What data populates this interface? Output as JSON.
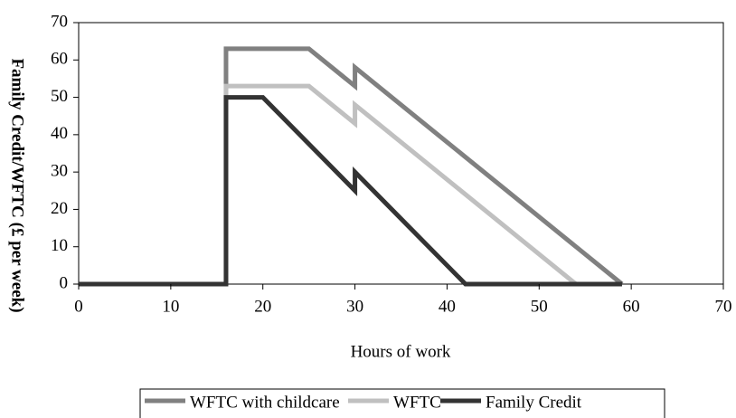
{
  "chart_data": {
    "type": "line",
    "x_label": "Hours of work",
    "y_label": "Family Credit/WFTC (£ per week)",
    "xlim": [
      0,
      70
    ],
    "xticks": [
      0,
      10,
      20,
      30,
      40,
      50,
      60,
      70
    ],
    "ylim": [
      0,
      70
    ],
    "yticks": [
      0,
      10,
      20,
      30,
      40,
      50,
      60,
      70
    ],
    "legend": "bottom",
    "series": [
      {
        "name": "WFTC with childcare",
        "color": "#808080",
        "x": [
          16,
          16,
          25,
          30,
          30,
          59
        ],
        "values": [
          0,
          63,
          63,
          53,
          58,
          0
        ]
      },
      {
        "name": "WFTC",
        "color": "#c0c0c0",
        "x": [
          16,
          16,
          25,
          30,
          30,
          54
        ],
        "values": [
          0,
          53,
          53,
          43,
          48,
          0
        ]
      },
      {
        "name": "Family Credit",
        "color": "#333333",
        "x": [
          0,
          16,
          16,
          20,
          30,
          30,
          42,
          59
        ],
        "values": [
          0,
          0,
          50,
          50,
          25,
          30,
          0,
          0
        ]
      }
    ]
  }
}
